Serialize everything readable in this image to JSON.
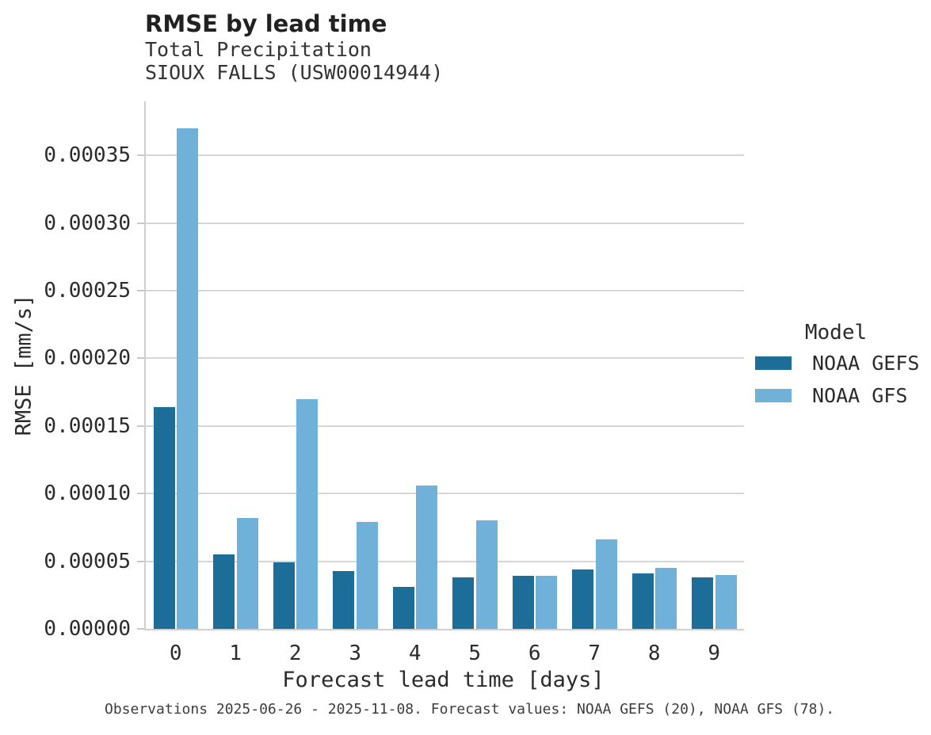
{
  "chart": {
    "title": "RMSE by lead time",
    "subtitle_line1": "Total Precipitation",
    "subtitle_line2": "SIOUX FALLS (USW00014944)",
    "xlabel": "Forecast lead time [days]",
    "ylabel": "RMSE [mm/s]"
  },
  "legend": {
    "title": "Model"
  },
  "caption": "Observations 2025-06-26 - 2025-11-08. Forecast values: NOAA GEFS (20), NOAA GFS (78).",
  "colors": {
    "gefs_bar": "#1d6d99",
    "gfs_bar": "#6fb1d9",
    "gridline": "#d6d6d6",
    "spine": "#cfcfcf",
    "tick": "#c9c9c9",
    "text": "#262626"
  },
  "chart_data": {
    "type": "bar",
    "title": "RMSE by lead time",
    "subtitle": [
      "Total Precipitation",
      "SIOUX FALLS (USW00014944)"
    ],
    "xlabel": "Forecast lead time [days]",
    "ylabel": "RMSE [mm/s]",
    "categories": [
      "0",
      "1",
      "2",
      "3",
      "4",
      "5",
      "6",
      "7",
      "8",
      "9"
    ],
    "series": [
      {
        "name": "NOAA GEFS",
        "color": "#1d6d99",
        "values": [
          0.000164,
          5.5e-05,
          4.9e-05,
          4.3e-05,
          3.1e-05,
          3.8e-05,
          3.9e-05,
          4.4e-05,
          4.1e-05,
          3.8e-05
        ]
      },
      {
        "name": "NOAA GFS",
        "color": "#6fb1d9",
        "values": [
          0.00037,
          8.2e-05,
          0.00017,
          7.9e-05,
          0.000106,
          8e-05,
          3.9e-05,
          6.6e-05,
          4.5e-05,
          4e-05
        ]
      }
    ],
    "ylim": [
      0,
      0.00039
    ],
    "yticks": [
      0,
      5e-05,
      0.0001,
      0.00015,
      0.0002,
      0.00025,
      0.0003,
      0.00035
    ],
    "ytick_labels": [
      "0.00000",
      "0.00005",
      "0.00010",
      "0.00015",
      "0.00020",
      "0.00025",
      "0.00030",
      "0.00035"
    ],
    "grid": "horizontal-gridlines",
    "legend_title": "Model",
    "legend_position": "center-right"
  }
}
